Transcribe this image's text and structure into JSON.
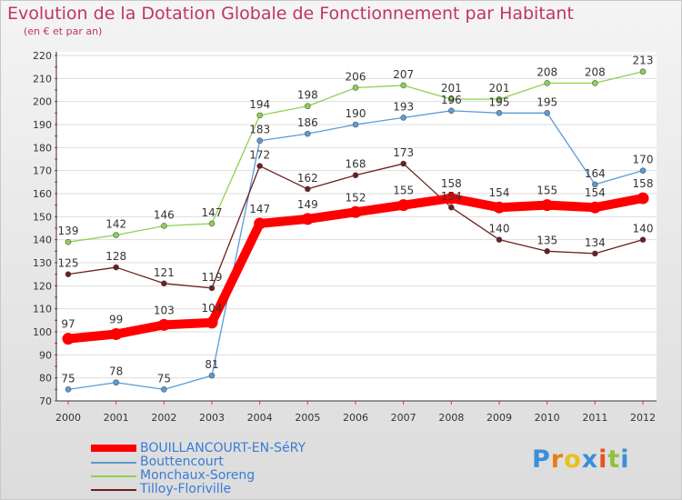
{
  "chart_data": {
    "type": "line",
    "title": "Evolution de la Dotation Globale de Fonctionnement par Habitant",
    "subtitle": "(en € et par an)",
    "x": [
      "2000",
      "2001",
      "2002",
      "2003",
      "2004",
      "2005",
      "2006",
      "2007",
      "2008",
      "2009",
      "2010",
      "2011",
      "2012"
    ],
    "ylim": [
      70,
      220
    ],
    "yticks": [
      70,
      80,
      90,
      100,
      110,
      120,
      130,
      140,
      150,
      160,
      170,
      180,
      190,
      200,
      210,
      220
    ],
    "grid": "horizontal",
    "legend_position": "bottom-left",
    "series": [
      {
        "name": "BOUILLANCOURT-EN-SéRY",
        "color": "#ff0000",
        "values": [
          97,
          99,
          103,
          104,
          147,
          149,
          152,
          155,
          158,
          154,
          155,
          154,
          158
        ],
        "labels": [
          "97",
          "99",
          "103",
          "104",
          "147",
          "149",
          "152",
          "155",
          "158",
          "154",
          "155",
          "154",
          "158"
        ]
      },
      {
        "name": "Bouttencourt",
        "color": "#5b9bd5",
        "values": [
          75,
          78,
          75,
          81,
          183,
          186,
          190,
          193,
          196,
          195,
          195,
          164,
          170
        ],
        "labels": [
          "75",
          "78",
          "75",
          "81",
          "183",
          "186",
          "190",
          "193",
          "196",
          "195",
          "195",
          "164",
          "170"
        ]
      },
      {
        "name": "Monchaux-Soreng",
        "color": "#8fd14f",
        "values": [
          139,
          142,
          146,
          147,
          194,
          198,
          206,
          207,
          201,
          201,
          208,
          208,
          213
        ],
        "labels": [
          "139",
          "142",
          "146",
          "147",
          "194",
          "198",
          "206",
          "207",
          "201",
          "201",
          "208",
          "208",
          "213"
        ]
      },
      {
        "name": "Tilloy-Floriville",
        "color": "#6b1e1e",
        "values": [
          125,
          128,
          121,
          119,
          172,
          162,
          168,
          173,
          154,
          140,
          135,
          134,
          140
        ],
        "labels": [
          "125",
          "128",
          "121",
          "119",
          "172",
          "162",
          "168",
          "173",
          "154",
          "140",
          "135",
          "134",
          "140"
        ]
      }
    ]
  },
  "logo": {
    "letters": [
      "P",
      "r",
      "o",
      "x",
      "i",
      "t",
      "i"
    ],
    "colors": [
      "#3a8fd8",
      "#e87d1e",
      "#e8c11e",
      "#3a8fd8",
      "#e8531e",
      "#8fc13a",
      "#3a8fd8"
    ]
  }
}
